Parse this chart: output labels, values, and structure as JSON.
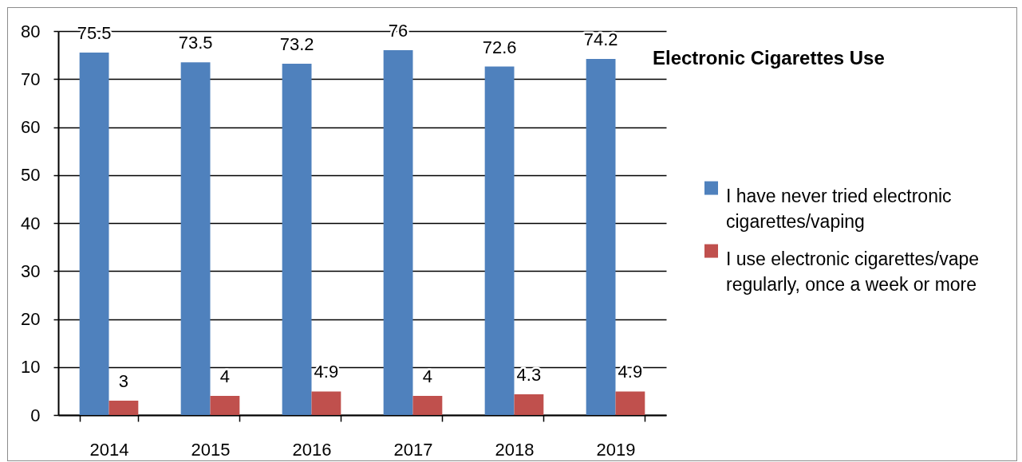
{
  "chart_data": {
    "type": "bar",
    "title": "Electronic Cigarettes Use",
    "categories": [
      "2014",
      "2015",
      "2016",
      "2017",
      "2018",
      "2019"
    ],
    "series": [
      {
        "name": "I have never tried electronic cigarettes/vaping",
        "color": "#4f81bd",
        "values": [
          75.5,
          73.5,
          73.2,
          76,
          72.6,
          74.2
        ]
      },
      {
        "name": "I use electronic cigarettes/vape regularly, once a week or more",
        "color": "#c0504d",
        "values": [
          3,
          4,
          4.9,
          4,
          4.3,
          4.9
        ]
      }
    ],
    "ylim": [
      0,
      80
    ],
    "yticks": [
      0,
      10,
      20,
      30,
      40,
      50,
      60,
      70,
      80
    ],
    "grid": "y",
    "legend": "right",
    "data_labels": true
  }
}
